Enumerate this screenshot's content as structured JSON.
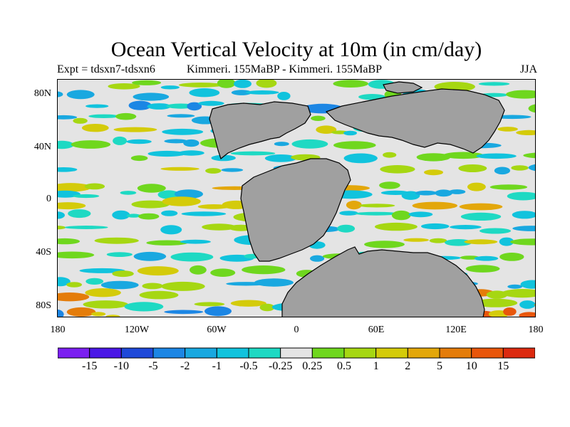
{
  "title": "Ocean Vertical Velocity at 10m (in cm/day)",
  "subtitle_left": "Expt = tdsxn7-tdsxn6",
  "subtitle_center": "Kimmeri. 155MaBP - Kimmeri. 155MaBP",
  "subtitle_right": "JJA",
  "y_axis_labels": [
    "80N",
    "40N",
    "0",
    "40S",
    "80S"
  ],
  "x_axis_labels": [
    "180",
    "120W",
    "60W",
    "0",
    "60E",
    "120E",
    "180"
  ],
  "colorbar": {
    "labels": [
      "-15",
      "-10",
      "-5",
      "-2",
      "-1",
      "-0.5",
      "-0.25",
      "0.25",
      "0.5",
      "1",
      "2",
      "5",
      "10",
      "15"
    ],
    "colors": [
      "#7b1ff0",
      "#4a17e6",
      "#1f49d9",
      "#1c86e4",
      "#19a8e0",
      "#11c3dd",
      "#1ed9c3",
      "#e4e4e4",
      "#6fd71e",
      "#a6d712",
      "#d4cb0a",
      "#e3a70b",
      "#e47c0a",
      "#e8560b",
      "#dc2a10"
    ]
  },
  "map": {
    "land_color": "#a0a0a0",
    "ocean_neutral_color": "#e4e4e4"
  }
}
